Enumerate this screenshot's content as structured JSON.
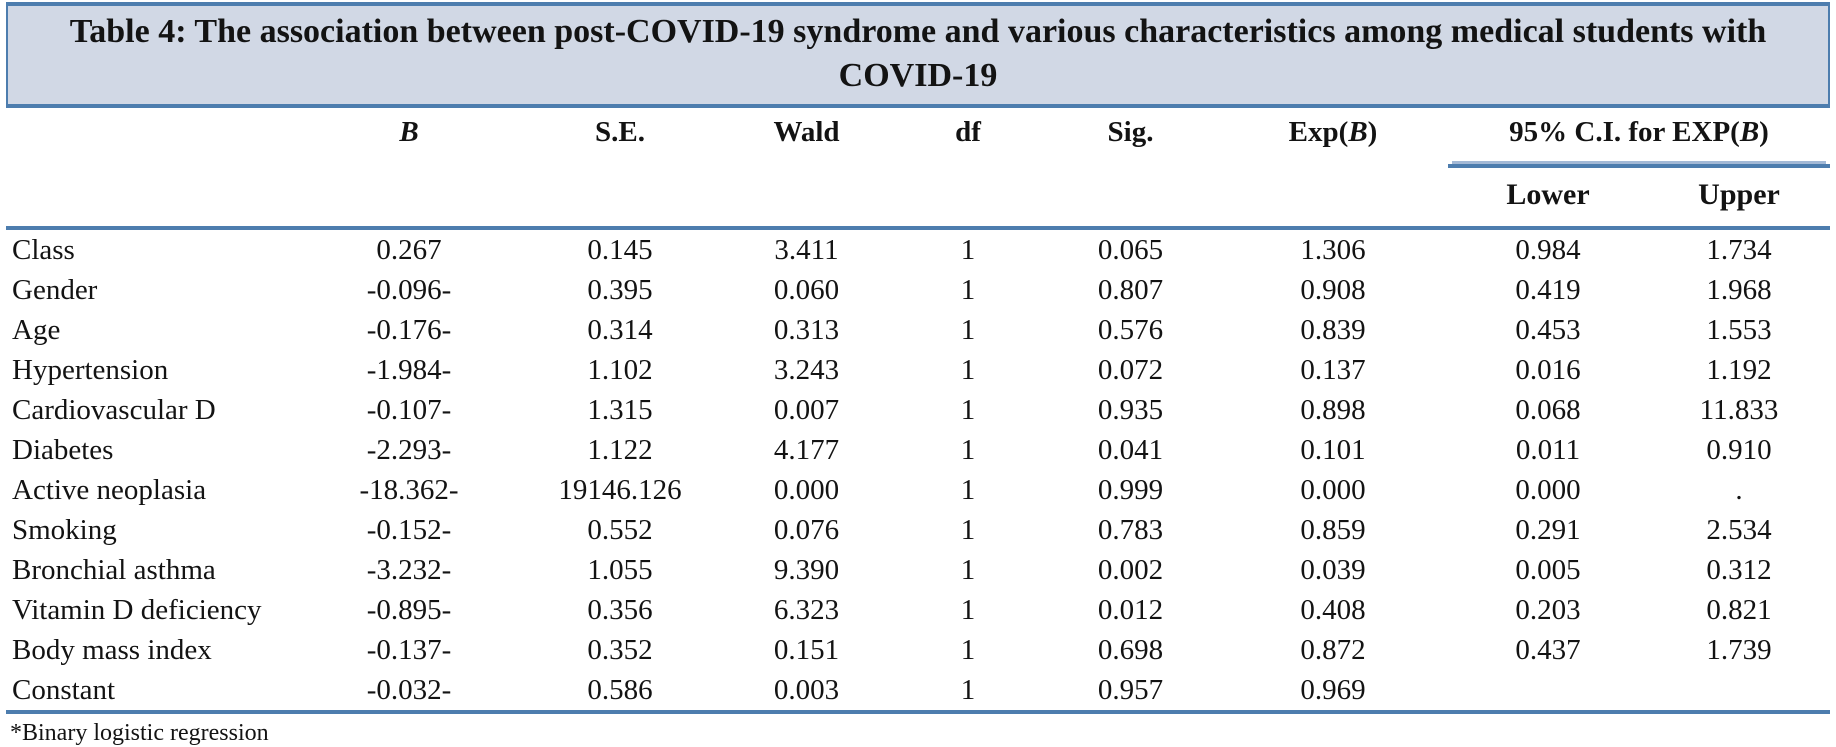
{
  "title": "Table 4: The association between post-COVID-19 syndrome and various characteristics among medical students with COVID-19",
  "colors": {
    "title_bg": "#d1d8e5",
    "rule": "#4d7dae",
    "rule_light": "#a3b9d6",
    "ink": "#131313"
  },
  "table": {
    "headers": {
      "b": "B",
      "se": "S.E.",
      "wald": "Wald",
      "df": "df",
      "sig": "Sig.",
      "exp": {
        "pre": "Exp(",
        "b": "B",
        "post": ")"
      },
      "ci": {
        "pre": "95% C.I. for EXP(",
        "b": "B",
        "post": ")"
      },
      "lower": "Lower",
      "upper": "Upper"
    },
    "rows": [
      [
        "Class",
        "0.267",
        "0.145",
        "3.411",
        "1",
        "0.065",
        "1.306",
        "0.984",
        "1.734"
      ],
      [
        "Gender",
        "-0.096-",
        "0.395",
        "0.060",
        "1",
        "0.807",
        "0.908",
        "0.419",
        "1.968"
      ],
      [
        "Age",
        "-0.176-",
        "0.314",
        "0.313",
        "1",
        "0.576",
        "0.839",
        "0.453",
        "1.553"
      ],
      [
        "Hypertension",
        "-1.984-",
        "1.102",
        "3.243",
        "1",
        "0.072",
        "0.137",
        "0.016",
        "1.192"
      ],
      [
        "Cardiovascular D",
        "-0.107-",
        "1.315",
        "0.007",
        "1",
        "0.935",
        "0.898",
        "0.068",
        "11.833"
      ],
      [
        "Diabetes",
        "-2.293-",
        "1.122",
        "4.177",
        "1",
        "0.041",
        "0.101",
        "0.011",
        "0.910"
      ],
      [
        "Active neoplasia",
        "-18.362-",
        "19146.126",
        "0.000",
        "1",
        "0.999",
        "0.000",
        "0.000",
        "."
      ],
      [
        "Smoking",
        "-0.152-",
        "0.552",
        "0.076",
        "1",
        "0.783",
        "0.859",
        "0.291",
        "2.534"
      ],
      [
        "Bronchial asthma",
        "-3.232-",
        "1.055",
        "9.390",
        "1",
        "0.002",
        "0.039",
        "0.005",
        "0.312"
      ],
      [
        "Vitamin D deficiency",
        "-0.895-",
        "0.356",
        "6.323",
        "1",
        "0.012",
        "0.408",
        "0.203",
        "0.821"
      ],
      [
        "Body mass index",
        "-0.137-",
        "0.352",
        "0.151",
        "1",
        "0.698",
        "0.872",
        "0.437",
        "1.739"
      ],
      [
        "Constant",
        "-0.032-",
        "0.586",
        "0.003",
        "1",
        "0.957",
        "0.969",
        "",
        ""
      ]
    ]
  },
  "footnote": "*Binary logistic regression"
}
